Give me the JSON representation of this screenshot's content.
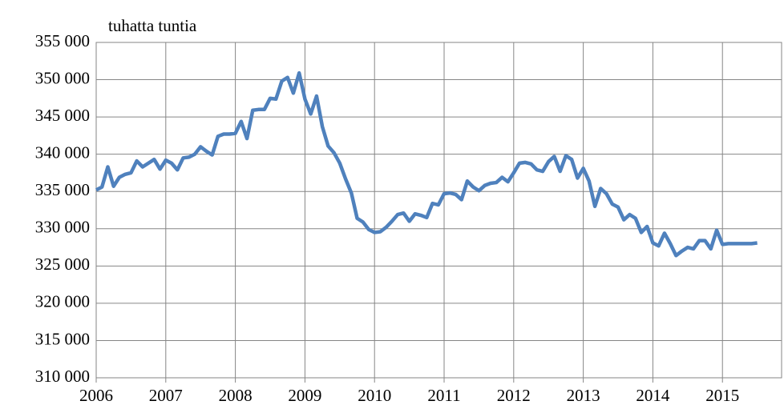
{
  "chart_data": {
    "type": "line",
    "y_label": "tuhatta tuntia",
    "x": [
      2006,
      2006.083,
      2006.167,
      2006.25,
      2006.333,
      2006.417,
      2006.5,
      2006.583,
      2006.667,
      2006.75,
      2006.833,
      2006.917,
      2007,
      2007.083,
      2007.167,
      2007.25,
      2007.333,
      2007.417,
      2007.5,
      2007.583,
      2007.667,
      2007.75,
      2007.833,
      2007.917,
      2008,
      2008.083,
      2008.167,
      2008.25,
      2008.333,
      2008.417,
      2008.5,
      2008.583,
      2008.667,
      2008.75,
      2008.833,
      2008.917,
      2009,
      2009.083,
      2009.167,
      2009.25,
      2009.333,
      2009.417,
      2009.5,
      2009.583,
      2009.667,
      2009.75,
      2009.833,
      2009.917,
      2010,
      2010.083,
      2010.167,
      2010.25,
      2010.333,
      2010.417,
      2010.5,
      2010.583,
      2010.667,
      2010.75,
      2010.833,
      2010.917,
      2011,
      2011.083,
      2011.167,
      2011.25,
      2011.333,
      2011.417,
      2011.5,
      2011.583,
      2011.667,
      2011.75,
      2011.833,
      2011.917,
      2012,
      2012.083,
      2012.167,
      2012.25,
      2012.333,
      2012.417,
      2012.5,
      2012.583,
      2012.667,
      2012.75,
      2012.833,
      2012.917,
      2013,
      2013.083,
      2013.167,
      2013.25,
      2013.333,
      2013.417,
      2013.5,
      2013.583,
      2013.667,
      2013.75,
      2013.833,
      2013.917,
      2014,
      2014.083,
      2014.167,
      2014.25,
      2014.333,
      2014.417,
      2014.5,
      2014.583,
      2014.667,
      2014.75,
      2014.833,
      2014.917,
      2015,
      2015.083,
      2015.167,
      2015.25,
      2015.333,
      2015.417,
      2015.5
    ],
    "series": [
      {
        "color": "#4f81bd",
        "values": [
          335200,
          335600,
          338300,
          335700,
          336900,
          337300,
          337500,
          339100,
          338300,
          338800,
          339300,
          338000,
          339200,
          338800,
          337900,
          339500,
          339600,
          340000,
          341000,
          340400,
          339900,
          342400,
          342700,
          342700,
          342800,
          344400,
          342100,
          345900,
          346000,
          346000,
          347500,
          347400,
          349800,
          350300,
          348200,
          350900,
          347400,
          345400,
          347800,
          343700,
          341100,
          340200,
          338800,
          336700,
          334800,
          331400,
          330900,
          329900,
          329500,
          329600,
          330200,
          331000,
          331900,
          332100,
          331000,
          332000,
          331800,
          331500,
          333400,
          333200,
          334700,
          334800,
          334600,
          333900,
          336400,
          335600,
          335100,
          335800,
          336100,
          336200,
          336900,
          336300,
          337500,
          338800,
          338900,
          338700,
          337900,
          337700,
          339000,
          339700,
          337700,
          339800,
          339300,
          336800,
          338100,
          336400,
          333000,
          335400,
          334700,
          333300,
          332900,
          331200,
          331900,
          331400,
          329500,
          330300,
          328100,
          327700,
          329400,
          328000,
          326400,
          327000,
          327500,
          327300,
          328400,
          328400,
          327300,
          329800,
          327900,
          328000,
          328000,
          328000,
          328000,
          328000,
          328100
        ]
      }
    ],
    "xlim": [
      2006,
      2015.85
    ],
    "xticks": [
      2006,
      2007,
      2008,
      2009,
      2010,
      2011,
      2012,
      2013,
      2014,
      2015
    ],
    "ylim": [
      310000,
      355000
    ],
    "yticks": [
      {
        "value": 310000,
        "label": "310 000"
      },
      {
        "value": 315000,
        "label": "315 000"
      },
      {
        "value": 320000,
        "label": "320 000"
      },
      {
        "value": 325000,
        "label": "325 000"
      },
      {
        "value": 330000,
        "label": "330 000"
      },
      {
        "value": 335000,
        "label": "335 000"
      },
      {
        "value": 340000,
        "label": "340 000"
      },
      {
        "value": 345000,
        "label": "345 000"
      },
      {
        "value": 350000,
        "label": "350 000"
      },
      {
        "value": 355000,
        "label": "355 000"
      }
    ],
    "grid": true
  }
}
